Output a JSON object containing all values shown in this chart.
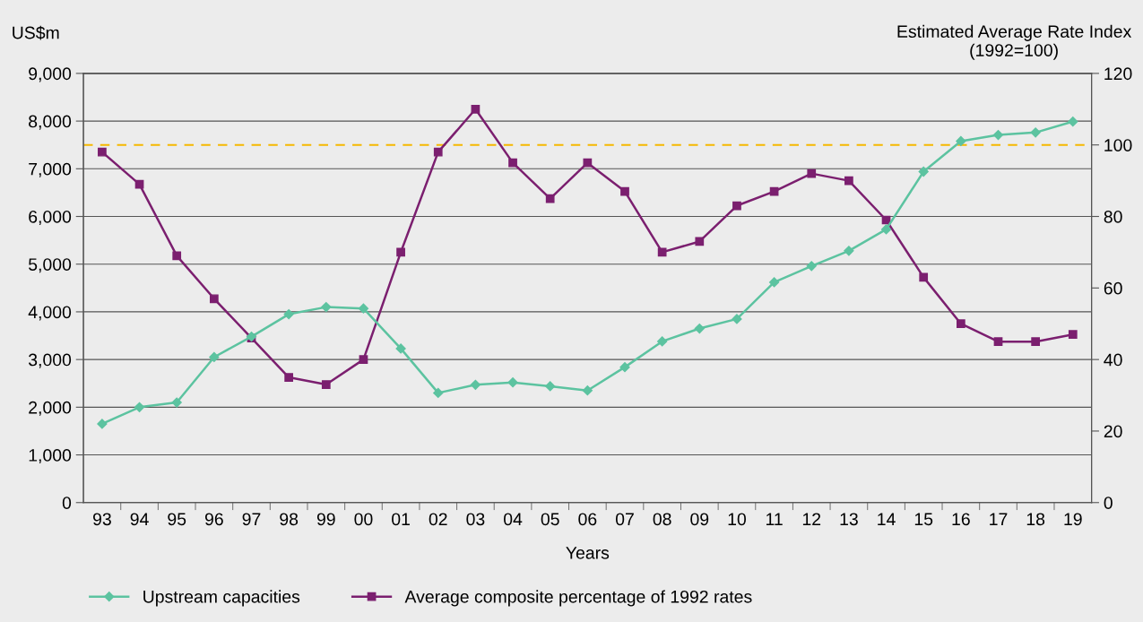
{
  "chart_data": {
    "type": "line",
    "xlabel": "Years",
    "ylabel": "US$m",
    "y2label": "Estimated Average Rate Index\n(1992=100)",
    "categories": [
      "93",
      "94",
      "95",
      "96",
      "97",
      "98",
      "99",
      "00",
      "01",
      "02",
      "03",
      "04",
      "05",
      "06",
      "07",
      "08",
      "09",
      "10",
      "11",
      "12",
      "13",
      "14",
      "15",
      "16",
      "17",
      "18",
      "19"
    ],
    "series": [
      {
        "name": "Upstream capacities",
        "color": "#5cc3a0",
        "marker": "diamond",
        "values": [
          1650,
          2000,
          2100,
          3050,
          3480,
          3950,
          4100,
          4070,
          3230,
          2300,
          2470,
          2520,
          2440,
          2350,
          2840,
          3380,
          3650,
          3850,
          4620,
          4960,
          5280,
          5730,
          6940,
          7580,
          7710,
          7760,
          7990
        ]
      },
      {
        "name": "Average composite percentage of 1992 rates",
        "color": "#7b1f6f",
        "marker": "square",
        "axis": "y2",
        "values": [
          98,
          89,
          69,
          57,
          46,
          35,
          33,
          40,
          70,
          98,
          110,
          95,
          85,
          95,
          87,
          70,
          73,
          83,
          87,
          92,
          90,
          79,
          63,
          50,
          45,
          45,
          47
        ]
      }
    ],
    "ylim": [
      0,
      9000
    ],
    "yticks": [
      {
        "value": 0,
        "label": "0"
      },
      {
        "value": 1000,
        "label": "1,000"
      },
      {
        "value": 2000,
        "label": "2,000"
      },
      {
        "value": 3000,
        "label": "3,000"
      },
      {
        "value": 4000,
        "label": "4,000"
      },
      {
        "value": 5000,
        "label": "5,000"
      },
      {
        "value": 6000,
        "label": "6,000"
      },
      {
        "value": 7000,
        "label": "7,000"
      },
      {
        "value": 8000,
        "label": "8,000"
      },
      {
        "value": 9000,
        "label": "9,000"
      }
    ],
    "y2lim": [
      0,
      120
    ],
    "y2ticks": [
      0,
      20,
      40,
      60,
      80,
      100,
      120
    ],
    "ref_lines": [
      {
        "axis": "y2",
        "value": 100,
        "color": "#f5b800",
        "line_style": "dashed"
      }
    ],
    "grid": "y",
    "legend": "bottom left"
  }
}
